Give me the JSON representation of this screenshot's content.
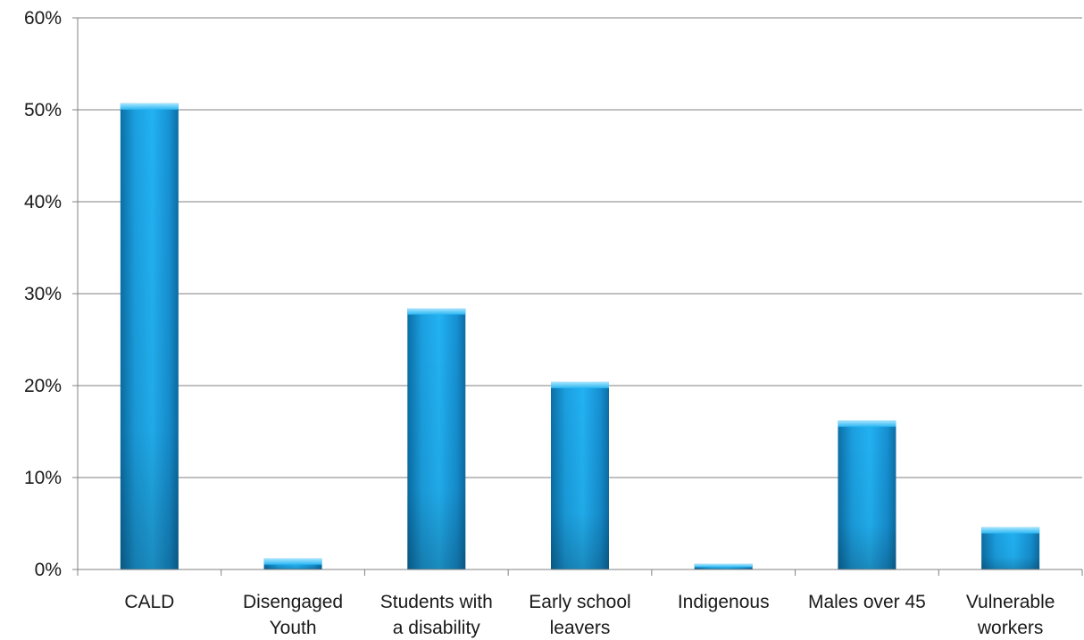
{
  "chart_data": {
    "type": "bar",
    "categories": [
      [
        "CALD"
      ],
      [
        "Disengaged",
        "Youth"
      ],
      [
        "Students with",
        "a disability"
      ],
      [
        "Early school",
        "leavers"
      ],
      [
        "Indigenous"
      ],
      [
        "Males over 45"
      ],
      [
        "Vulnerable",
        "workers"
      ]
    ],
    "values": [
      50.7,
      1.2,
      28.4,
      20.4,
      0.6,
      16.2,
      4.6
    ],
    "y_ticks": [
      "0%",
      "10%",
      "20%",
      "30%",
      "40%",
      "50%",
      "60%"
    ],
    "ylim": [
      0,
      60
    ],
    "grid": true,
    "legend": "none",
    "colors": {
      "bar_top": "#1fb4f5",
      "bar_mid": "#0e93d6",
      "bar_bottom": "#0a6fa6",
      "bar_cap": "#7fd8ff",
      "grid": "#808080",
      "axis": "#808080"
    }
  }
}
